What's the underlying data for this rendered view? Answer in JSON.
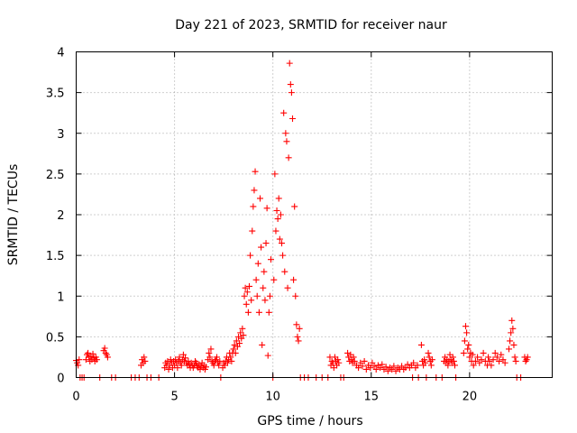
{
  "chart_data": {
    "type": "scatter",
    "title": "Day 221 of 2023, SRMTID for receiver naur",
    "xlabel": "GPS time / hours",
    "ylabel": "SRMTID / TECUs",
    "xlim": [
      0,
      24.2
    ],
    "ylim": [
      0,
      4
    ],
    "xticks": [
      0,
      5,
      10,
      15,
      20
    ],
    "xtick_labels": [
      "0",
      "5",
      "10",
      "15",
      "20"
    ],
    "yticks": [
      0,
      0.5,
      1,
      1.5,
      2,
      2.5,
      3,
      3.5,
      4
    ],
    "ytick_labels": [
      "0",
      "0.5",
      "1",
      "1.5",
      "2",
      "2.5",
      "3",
      "3.5",
      "4"
    ],
    "grid": true,
    "marker": "+",
    "series": [
      {
        "name": "SRMTID",
        "color": "#ff0000",
        "points": [
          [
            0.0,
            0.21
          ],
          [
            0.05,
            0.18
          ],
          [
            0.1,
            0.15
          ],
          [
            0.15,
            0.22
          ],
          [
            0.2,
            0.0
          ],
          [
            0.3,
            0.0
          ],
          [
            0.4,
            0.0
          ],
          [
            0.5,
            0.22
          ],
          [
            0.55,
            0.28
          ],
          [
            0.6,
            0.3
          ],
          [
            0.65,
            0.25
          ],
          [
            0.7,
            0.2
          ],
          [
            0.75,
            0.26
          ],
          [
            0.8,
            0.22
          ],
          [
            0.85,
            0.29
          ],
          [
            0.9,
            0.24
          ],
          [
            0.95,
            0.2
          ],
          [
            1.0,
            0.25
          ],
          [
            1.05,
            0.22
          ],
          [
            1.2,
            0.0
          ],
          [
            1.4,
            0.33
          ],
          [
            1.45,
            0.36
          ],
          [
            1.5,
            0.3
          ],
          [
            1.55,
            0.28
          ],
          [
            1.6,
            0.25
          ],
          [
            1.8,
            0.0
          ],
          [
            2.0,
            0.0
          ],
          [
            2.8,
            0.0
          ],
          [
            3.0,
            0.0
          ],
          [
            3.2,
            0.0
          ],
          [
            3.3,
            0.15
          ],
          [
            3.35,
            0.22
          ],
          [
            3.4,
            0.18
          ],
          [
            3.45,
            0.25
          ],
          [
            3.5,
            0.2
          ],
          [
            3.6,
            0.0
          ],
          [
            3.8,
            0.0
          ],
          [
            4.2,
            0.0
          ],
          [
            4.5,
            0.12
          ],
          [
            4.55,
            0.18
          ],
          [
            4.6,
            0.15
          ],
          [
            4.65,
            0.2
          ],
          [
            4.7,
            0.1
          ],
          [
            4.75,
            0.15
          ],
          [
            4.8,
            0.22
          ],
          [
            4.85,
            0.18
          ],
          [
            4.9,
            0.12
          ],
          [
            4.95,
            0.2
          ],
          [
            5.0,
            0.15
          ],
          [
            5.05,
            0.22
          ],
          [
            5.1,
            0.18
          ],
          [
            5.15,
            0.12
          ],
          [
            5.2,
            0.2
          ],
          [
            5.25,
            0.25
          ],
          [
            5.3,
            0.18
          ],
          [
            5.35,
            0.15
          ],
          [
            5.4,
            0.22
          ],
          [
            5.45,
            0.28
          ],
          [
            5.5,
            0.2
          ],
          [
            5.55,
            0.24
          ],
          [
            5.6,
            0.18
          ],
          [
            5.65,
            0.15
          ],
          [
            5.7,
            0.2
          ],
          [
            5.75,
            0.16
          ],
          [
            5.8,
            0.12
          ],
          [
            5.85,
            0.18
          ],
          [
            5.9,
            0.15
          ],
          [
            5.95,
            0.12
          ],
          [
            6.0,
            0.15
          ],
          [
            6.05,
            0.2
          ],
          [
            6.1,
            0.18
          ],
          [
            6.15,
            0.14
          ],
          [
            6.2,
            0.12
          ],
          [
            6.25,
            0.16
          ],
          [
            6.3,
            0.1
          ],
          [
            6.35,
            0.14
          ],
          [
            6.4,
            0.18
          ],
          [
            6.45,
            0.12
          ],
          [
            6.5,
            0.15
          ],
          [
            6.55,
            0.1
          ],
          [
            6.6,
            0.13
          ],
          [
            6.7,
            0.22
          ],
          [
            6.75,
            0.3
          ],
          [
            6.8,
            0.25
          ],
          [
            6.85,
            0.35
          ],
          [
            6.9,
            0.2
          ],
          [
            6.95,
            0.18
          ],
          [
            7.0,
            0.15
          ],
          [
            7.05,
            0.2
          ],
          [
            7.1,
            0.22
          ],
          [
            7.15,
            0.25
          ],
          [
            7.2,
            0.18
          ],
          [
            7.25,
            0.15
          ],
          [
            7.3,
            0.2
          ],
          [
            7.35,
            0.0
          ],
          [
            7.45,
            0.12
          ],
          [
            7.5,
            0.18
          ],
          [
            7.55,
            0.15
          ],
          [
            7.6,
            0.2
          ],
          [
            7.65,
            0.25
          ],
          [
            7.7,
            0.18
          ],
          [
            7.75,
            0.22
          ],
          [
            7.8,
            0.3
          ],
          [
            7.85,
            0.25
          ],
          [
            7.9,
            0.2
          ],
          [
            7.95,
            0.3
          ],
          [
            8.0,
            0.35
          ],
          [
            8.05,
            0.4
          ],
          [
            8.1,
            0.3
          ],
          [
            8.15,
            0.45
          ],
          [
            8.2,
            0.38
          ],
          [
            8.25,
            0.5
          ],
          [
            8.3,
            0.42
          ],
          [
            8.35,
            0.55
          ],
          [
            8.4,
            0.48
          ],
          [
            8.45,
            0.6
          ],
          [
            8.5,
            0.52
          ],
          [
            8.55,
            1.0
          ],
          [
            8.6,
            1.1
          ],
          [
            8.65,
            0.9
          ],
          [
            8.7,
            1.05
          ],
          [
            8.75,
            0.8
          ],
          [
            8.8,
            1.12
          ],
          [
            8.85,
            1.5
          ],
          [
            8.9,
            0.95
          ],
          [
            8.95,
            1.8
          ],
          [
            9.0,
            2.1
          ],
          [
            9.05,
            2.3
          ],
          [
            9.1,
            2.53
          ],
          [
            9.15,
            1.2
          ],
          [
            9.2,
            1.0
          ],
          [
            9.25,
            1.4
          ],
          [
            9.3,
            0.8
          ],
          [
            9.35,
            2.2
          ],
          [
            9.4,
            1.6
          ],
          [
            9.45,
            0.4
          ],
          [
            9.5,
            1.1
          ],
          [
            9.55,
            1.3
          ],
          [
            9.6,
            0.95
          ],
          [
            9.65,
            1.65
          ],
          [
            9.7,
            2.08
          ],
          [
            9.75,
            0.27
          ],
          [
            9.8,
            0.8
          ],
          [
            9.85,
            1.0
          ],
          [
            9.9,
            1.45
          ],
          [
            10.0,
            0.0
          ],
          [
            10.05,
            1.2
          ],
          [
            10.1,
            2.5
          ],
          [
            10.15,
            1.8
          ],
          [
            10.2,
            2.05
          ],
          [
            10.25,
            1.95
          ],
          [
            10.3,
            2.2
          ],
          [
            10.35,
            1.7
          ],
          [
            10.4,
            2.0
          ],
          [
            10.45,
            1.65
          ],
          [
            10.5,
            1.5
          ],
          [
            10.55,
            3.25
          ],
          [
            10.6,
            1.3
          ],
          [
            10.65,
            3.0
          ],
          [
            10.7,
            2.9
          ],
          [
            10.75,
            1.1
          ],
          [
            10.8,
            2.7
          ],
          [
            10.85,
            3.86
          ],
          [
            10.9,
            3.6
          ],
          [
            10.95,
            3.5
          ],
          [
            11.0,
            3.18
          ],
          [
            11.05,
            1.2
          ],
          [
            11.1,
            2.1
          ],
          [
            11.15,
            1.0
          ],
          [
            11.2,
            0.65
          ],
          [
            11.25,
            0.5
          ],
          [
            11.3,
            0.45
          ],
          [
            11.35,
            0.6
          ],
          [
            11.4,
            0.0
          ],
          [
            11.6,
            0.0
          ],
          [
            11.8,
            0.0
          ],
          [
            12.2,
            0.0
          ],
          [
            12.5,
            0.0
          ],
          [
            12.8,
            0.0
          ],
          [
            12.9,
            0.25
          ],
          [
            12.95,
            0.15
          ],
          [
            13.0,
            0.2
          ],
          [
            13.05,
            0.18
          ],
          [
            13.1,
            0.12
          ],
          [
            13.15,
            0.25
          ],
          [
            13.2,
            0.2
          ],
          [
            13.25,
            0.15
          ],
          [
            13.3,
            0.22
          ],
          [
            13.35,
            0.18
          ],
          [
            13.45,
            0.0
          ],
          [
            13.6,
            0.0
          ],
          [
            13.8,
            0.3
          ],
          [
            13.85,
            0.25
          ],
          [
            13.9,
            0.2
          ],
          [
            13.95,
            0.28
          ],
          [
            14.0,
            0.22
          ],
          [
            14.05,
            0.18
          ],
          [
            14.1,
            0.25
          ],
          [
            14.15,
            0.2
          ],
          [
            14.25,
            0.15
          ],
          [
            14.35,
            0.12
          ],
          [
            14.45,
            0.18
          ],
          [
            14.55,
            0.14
          ],
          [
            14.65,
            0.2
          ],
          [
            14.75,
            0.1
          ],
          [
            14.85,
            0.15
          ],
          [
            14.95,
            0.12
          ],
          [
            15.05,
            0.18
          ],
          [
            15.15,
            0.14
          ],
          [
            15.25,
            0.1
          ],
          [
            15.35,
            0.15
          ],
          [
            15.45,
            0.12
          ],
          [
            15.55,
            0.16
          ],
          [
            15.65,
            0.1
          ],
          [
            15.75,
            0.13
          ],
          [
            15.85,
            0.08
          ],
          [
            15.95,
            0.12
          ],
          [
            16.05,
            0.1
          ],
          [
            16.15,
            0.14
          ],
          [
            16.25,
            0.08
          ],
          [
            16.35,
            0.12
          ],
          [
            16.45,
            0.1
          ],
          [
            16.55,
            0.14
          ],
          [
            16.65,
            0.1
          ],
          [
            16.75,
            0.12
          ],
          [
            16.85,
            0.16
          ],
          [
            16.95,
            0.12
          ],
          [
            17.05,
            0.15
          ],
          [
            17.15,
            0.18
          ],
          [
            17.25,
            0.12
          ],
          [
            17.35,
            0.15
          ],
          [
            17.1,
            0.0
          ],
          [
            17.4,
            0.0
          ],
          [
            17.8,
            0.0
          ],
          [
            17.55,
            0.4
          ],
          [
            17.6,
            0.2
          ],
          [
            17.65,
            0.15
          ],
          [
            17.7,
            0.22
          ],
          [
            17.75,
            0.18
          ],
          [
            17.9,
            0.3
          ],
          [
            17.95,
            0.25
          ],
          [
            18.0,
            0.2
          ],
          [
            18.05,
            0.15
          ],
          [
            18.1,
            0.22
          ],
          [
            18.3,
            0.0
          ],
          [
            18.6,
            0.0
          ],
          [
            18.7,
            0.2
          ],
          [
            18.75,
            0.25
          ],
          [
            18.8,
            0.18
          ],
          [
            18.85,
            0.22
          ],
          [
            18.9,
            0.15
          ],
          [
            18.95,
            0.2
          ],
          [
            19.0,
            0.28
          ],
          [
            19.05,
            0.22
          ],
          [
            19.1,
            0.18
          ],
          [
            19.15,
            0.25
          ],
          [
            19.2,
            0.2
          ],
          [
            19.25,
            0.15
          ],
          [
            19.3,
            0.0
          ],
          [
            19.7,
            0.3
          ],
          [
            19.75,
            0.45
          ],
          [
            19.8,
            0.63
          ],
          [
            19.85,
            0.55
          ],
          [
            19.9,
            0.35
          ],
          [
            19.95,
            0.4
          ],
          [
            20.0,
            0.25
          ],
          [
            20.05,
            0.3
          ],
          [
            20.1,
            0.2
          ],
          [
            20.15,
            0.28
          ],
          [
            20.2,
            0.15
          ],
          [
            20.3,
            0.2
          ],
          [
            20.4,
            0.25
          ],
          [
            20.5,
            0.18
          ],
          [
            20.6,
            0.22
          ],
          [
            20.7,
            0.3
          ],
          [
            20.8,
            0.2
          ],
          [
            20.9,
            0.15
          ],
          [
            20.95,
            0.25
          ],
          [
            21.0,
            0.2
          ],
          [
            21.1,
            0.15
          ],
          [
            21.2,
            0.22
          ],
          [
            21.3,
            0.3
          ],
          [
            21.4,
            0.25
          ],
          [
            21.5,
            0.2
          ],
          [
            21.6,
            0.28
          ],
          [
            21.7,
            0.22
          ],
          [
            21.8,
            0.18
          ],
          [
            22.0,
            0.35
          ],
          [
            22.05,
            0.45
          ],
          [
            22.1,
            0.55
          ],
          [
            22.15,
            0.7
          ],
          [
            22.2,
            0.6
          ],
          [
            22.25,
            0.4
          ],
          [
            22.3,
            0.25
          ],
          [
            22.35,
            0.2
          ],
          [
            22.4,
            0.0
          ],
          [
            22.6,
            0.0
          ],
          [
            22.8,
            0.25
          ],
          [
            22.85,
            0.2
          ],
          [
            22.9,
            0.22
          ],
          [
            22.95,
            0.25
          ]
        ]
      }
    ]
  }
}
